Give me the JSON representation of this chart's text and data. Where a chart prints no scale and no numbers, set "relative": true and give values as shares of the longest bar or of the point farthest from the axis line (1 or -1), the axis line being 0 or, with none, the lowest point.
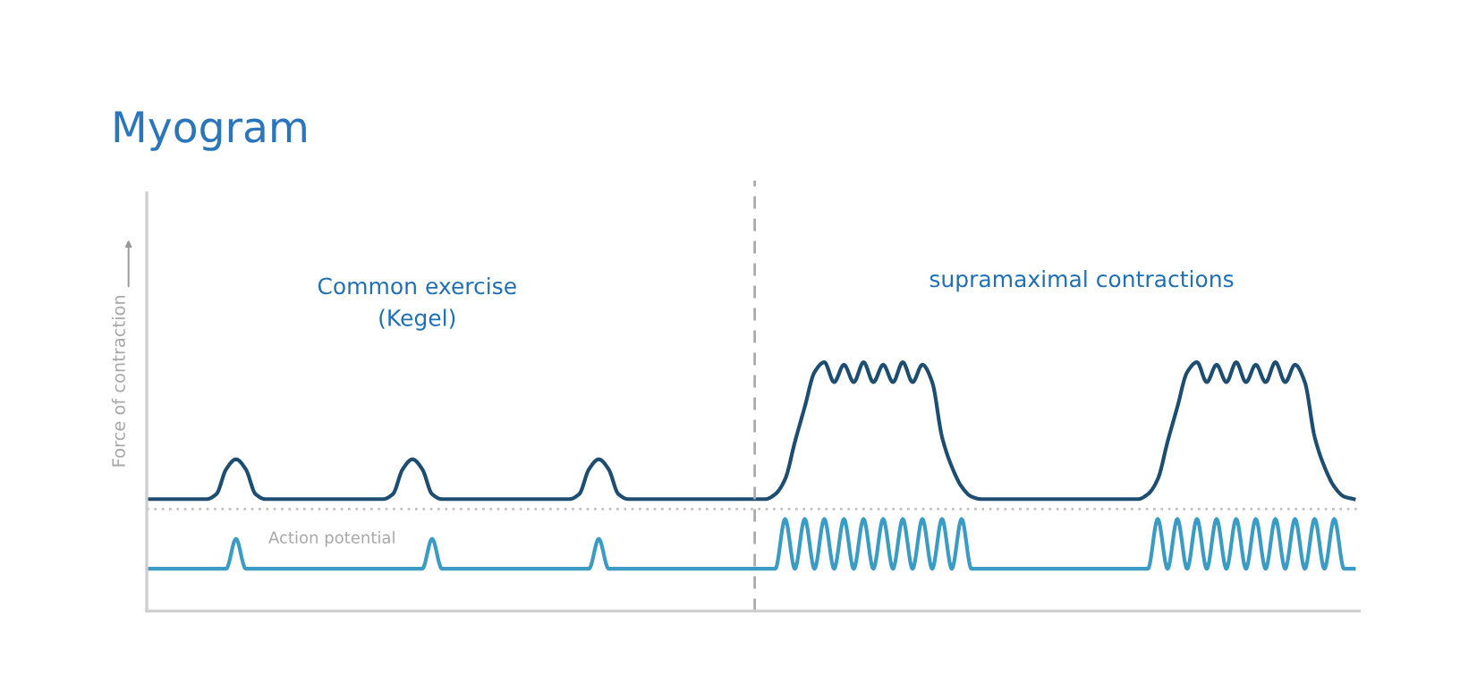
{
  "chart_data": {
    "type": "line",
    "title": "Myogram",
    "ylabel": "Force of contraction",
    "relative": true,
    "legend": false,
    "annotations": [
      "Common exercise\n(Kegel)",
      "supramaximal contractions"
    ],
    "categories": [
      null,
      null,
      null,
      null,
      null,
      null,
      null,
      null,
      null,
      null,
      null,
      null,
      null,
      null,
      null,
      null,
      null,
      null,
      null,
      null,
      null,
      null,
      null,
      null,
      null,
      null,
      null,
      null,
      null,
      null,
      null,
      null,
      null,
      null,
      null,
      null,
      null,
      null,
      null,
      null,
      null,
      null,
      null,
      null,
      null,
      null,
      null,
      null,
      null,
      null,
      null,
      null,
      null,
      null,
      null,
      null,
      null,
      null,
      null,
      null,
      null,
      null,
      null,
      null,
      null,
      null,
      null,
      null,
      null,
      null,
      null,
      null,
      null,
      null,
      null,
      null,
      null,
      null,
      null,
      null,
      null,
      null,
      null,
      null,
      null,
      null,
      null,
      null,
      null,
      null,
      null,
      null,
      null,
      null,
      null,
      null,
      null,
      null,
      null,
      null,
      null,
      null,
      null,
      null,
      null,
      null,
      null,
      null,
      null,
      null,
      null,
      null,
      null,
      null,
      null,
      null,
      null,
      null,
      null,
      null,
      null,
      null,
      null,
      null
    ],
    "series": [
      {
        "color": "#1d4e72",
        "values": [
          0.45,
          0.45,
          0.45,
          0.45,
          0.45,
          0.45,
          0.45,
          0.47,
          0.57,
          0.61,
          0.57,
          0.47,
          0.45,
          0.45,
          0.45,
          0.45,
          0.45,
          0.45,
          0.45,
          0.45,
          0.45,
          0.45,
          0.45,
          0.45,
          0.45,
          0.47,
          0.57,
          0.61,
          0.57,
          0.47,
          0.45,
          0.45,
          0.45,
          0.45,
          0.45,
          0.45,
          0.45,
          0.45,
          0.45,
          0.45,
          0.45,
          0.45,
          0.45,
          0.45,
          0.47,
          0.57,
          0.61,
          0.57,
          0.47,
          0.45,
          0.45,
          0.45,
          0.45,
          0.45,
          0.45,
          0.45,
          0.45,
          0.45,
          0.45,
          0.45,
          0.45,
          0.45,
          0.45,
          0.45,
          0.47,
          0.53,
          0.68,
          0.82,
          0.96,
          1,
          0.92,
          0.99,
          0.92,
          1,
          0.92,
          0.99,
          0.92,
          1,
          0.92,
          0.99,
          0.92,
          0.7,
          0.58,
          0.5,
          0.46,
          0.45,
          0.45,
          0.45,
          0.45,
          0.45,
          0.45,
          0.45,
          0.45,
          0.45,
          0.45,
          0.45,
          0.45,
          0.45,
          0.45,
          0.45,
          0.45,
          0.45,
          0.47,
          0.53,
          0.68,
          0.82,
          0.96,
          1,
          0.92,
          0.99,
          0.92,
          1,
          0.92,
          0.99,
          0.92,
          1,
          0.92,
          0.99,
          0.92,
          0.7,
          0.58,
          0.5,
          0.46,
          0.45
        ]
      },
      {
        "name": "Action potential",
        "color": "#3a9cc4",
        "values": [
          0.17,
          0.17,
          0.17,
          0.17,
          0.17,
          0.17,
          0.17,
          0.17,
          0.17,
          0.29,
          0.17,
          0.17,
          0.17,
          0.17,
          0.17,
          0.17,
          0.17,
          0.17,
          0.17,
          0.17,
          0.17,
          0.17,
          0.17,
          0.17,
          0.17,
          0.17,
          0.17,
          0.17,
          0.17,
          0.29,
          0.17,
          0.17,
          0.17,
          0.17,
          0.17,
          0.17,
          0.17,
          0.17,
          0.17,
          0.17,
          0.17,
          0.17,
          0.17,
          0.17,
          0.17,
          0.17,
          0.29,
          0.17,
          0.17,
          0.17,
          0.17,
          0.17,
          0.17,
          0.17,
          0.17,
          0.17,
          0.17,
          0.17,
          0.17,
          0.17,
          0.17,
          0.17,
          0.17,
          0.17,
          0.17,
          0.37,
          0.17,
          0.37,
          0.17,
          0.37,
          0.17,
          0.37,
          0.17,
          0.37,
          0.17,
          0.37,
          0.17,
          0.37,
          0.17,
          0.37,
          0.17,
          0.37,
          0.17,
          0.37,
          0.17,
          0.17,
          0.17,
          0.17,
          0.17,
          0.17,
          0.17,
          0.17,
          0.17,
          0.17,
          0.17,
          0.17,
          0.17,
          0.17,
          0.17,
          0.17,
          0.17,
          0.17,
          0.17,
          0.37,
          0.17,
          0.37,
          0.17,
          0.37,
          0.17,
          0.37,
          0.17,
          0.37,
          0.17,
          0.37,
          0.17,
          0.37,
          0.17,
          0.37,
          0.17,
          0.37,
          0.17,
          0.37,
          0.17,
          0.17
        ]
      }
    ],
    "ref_lines": [
      {
        "axis": "y",
        "value": 0.41,
        "color": "#c4c4c4",
        "line_style": "dotted"
      }
    ]
  }
}
